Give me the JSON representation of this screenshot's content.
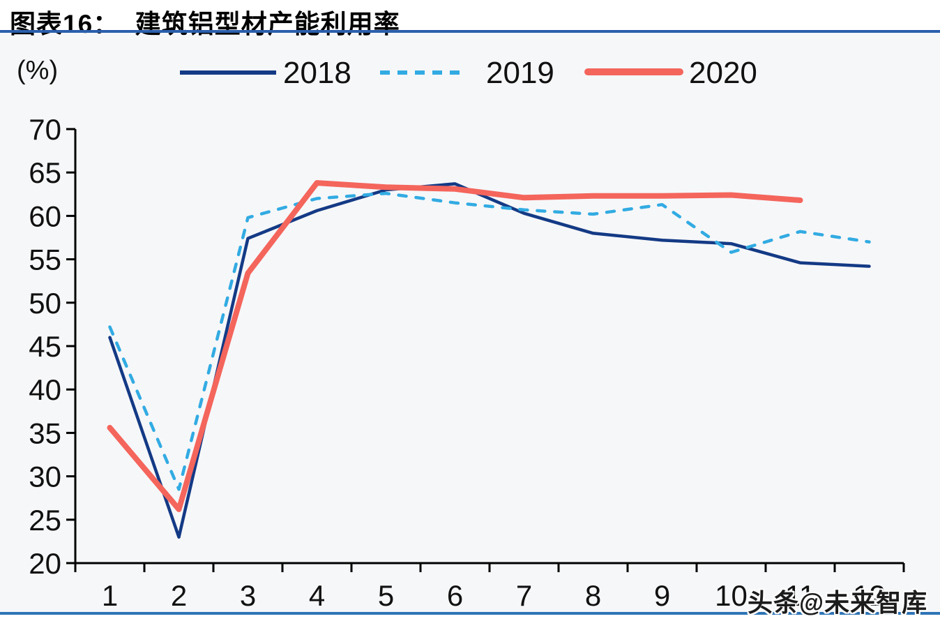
{
  "header": {
    "title": "图表16：  建筑铝型材产能利用率"
  },
  "legend": {
    "unit_label": "(%)",
    "items": [
      {
        "label": "2018",
        "color": "#143A85",
        "style": "solid"
      },
      {
        "label": "2019",
        "color": "#32ABE2",
        "style": "dashed"
      },
      {
        "label": "2020",
        "color": "#F4655C",
        "style": "thick"
      }
    ]
  },
  "watermark": {
    "text": "头条@未来智库"
  },
  "chart_data": {
    "type": "line",
    "title": "建筑铝型材产能利用率",
    "xlabel": "",
    "ylabel": "(%)",
    "x": [
      1,
      2,
      3,
      4,
      5,
      6,
      7,
      8,
      9,
      10,
      11,
      12
    ],
    "ylim": [
      20,
      70
    ],
    "ytick_step": 5,
    "grid": false,
    "legend_position": "top",
    "series": [
      {
        "name": "2018",
        "color": "#143A85",
        "dash": false,
        "width": 4.5,
        "values": [
          46,
          23,
          57.4,
          60.6,
          63,
          63.7,
          60.3,
          58,
          57.2,
          56.8,
          54.6,
          54.2
        ]
      },
      {
        "name": "2019",
        "color": "#32ABE2",
        "dash": true,
        "width": 4.5,
        "values": [
          47.2,
          28.5,
          59.8,
          62,
          62.6,
          61.5,
          60.7,
          60.2,
          61.3,
          55.8,
          58.2,
          57
        ]
      },
      {
        "name": "2020",
        "color": "#F4655C",
        "dash": false,
        "width": 8,
        "values": [
          35.6,
          26.2,
          53.4,
          63.8,
          63.3,
          63.1,
          62.1,
          62.3,
          62.3,
          62.4,
          61.8,
          null
        ]
      }
    ]
  },
  "colors": {
    "rule_top": "#2B5FAC",
    "rule_bottom": "#2E74B5",
    "axis": "#000000",
    "chart_bg": "#F6F7F9"
  }
}
